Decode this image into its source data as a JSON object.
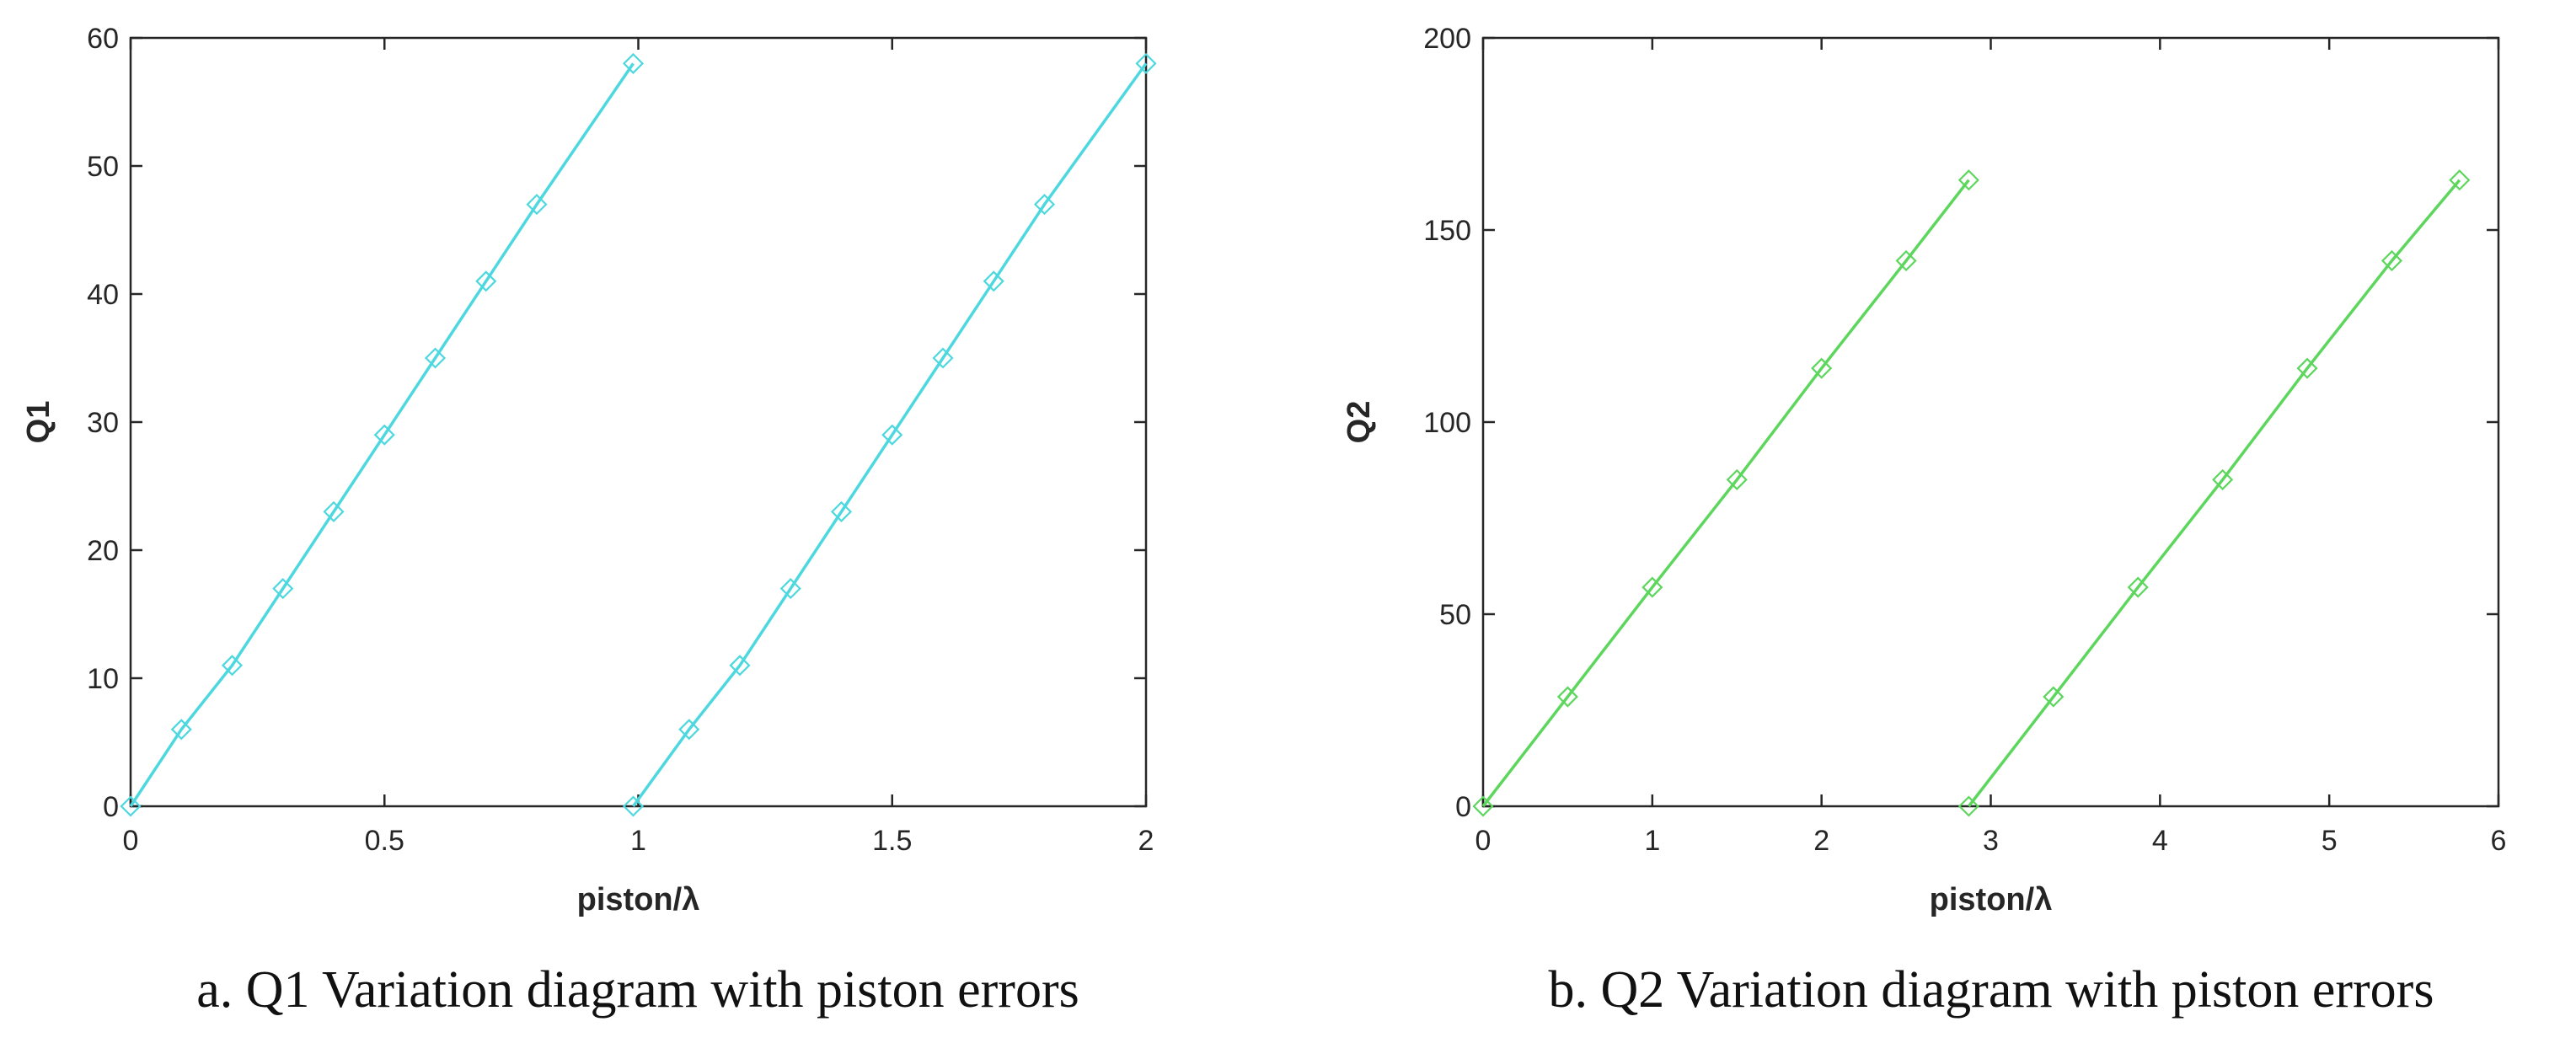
{
  "chart_data": [
    {
      "type": "line",
      "caption": "a. Q1 Variation diagram with piston errors",
      "xlabel": "piston/λ",
      "ylabel": "Q1",
      "xlim": [
        0,
        2
      ],
      "ylim": [
        0,
        60
      ],
      "xticks": [
        0,
        0.5,
        1,
        1.5,
        2
      ],
      "xtick_labels": [
        "0",
        "0.5",
        "1",
        "1.5",
        "2"
      ],
      "yticks": [
        0,
        10,
        20,
        30,
        40,
        50,
        60
      ],
      "ytick_labels": [
        "0",
        "10",
        "20",
        "30",
        "40",
        "50",
        "60"
      ],
      "grid": false,
      "color": "#4dd8df",
      "marker": "diamond",
      "series": [
        {
          "x": [
            0,
            0.1,
            0.2,
            0.3,
            0.4,
            0.5,
            0.6,
            0.7,
            0.8,
            0.99
          ],
          "y": [
            0,
            6,
            11,
            17,
            23,
            29,
            35,
            41,
            47,
            58
          ]
        },
        {
          "x": [
            0.99,
            1.1,
            1.2,
            1.3,
            1.4,
            1.5,
            1.6,
            1.7,
            1.8,
            2.0
          ],
          "y": [
            0,
            6,
            11,
            17,
            23,
            29,
            35,
            41,
            47,
            58
          ]
        }
      ]
    },
    {
      "type": "line",
      "caption": "b. Q2 Variation diagram with piston errors",
      "xlabel": "piston/λ",
      "ylabel": "Q2",
      "xlim": [
        0,
        6
      ],
      "ylim": [
        0,
        200
      ],
      "xticks": [
        0,
        1,
        2,
        3,
        4,
        5,
        6
      ],
      "xtick_labels": [
        "0",
        "1",
        "2",
        "3",
        "4",
        "5",
        "6"
      ],
      "yticks": [
        0,
        50,
        100,
        150,
        200
      ],
      "ytick_labels": [
        "0",
        "50",
        "100",
        "150",
        "200"
      ],
      "grid": false,
      "color": "#5cd65c",
      "marker": "diamond",
      "series": [
        {
          "x": [
            0,
            0.5,
            1.0,
            1.5,
            2.0,
            2.5,
            2.87
          ],
          "y": [
            0,
            28.5,
            57,
            85,
            114,
            142,
            163
          ]
        },
        {
          "x": [
            2.87,
            3.37,
            3.87,
            4.37,
            4.87,
            5.37,
            5.77
          ],
          "y": [
            0,
            28.5,
            57,
            85,
            114,
            142,
            163
          ]
        }
      ]
    }
  ]
}
